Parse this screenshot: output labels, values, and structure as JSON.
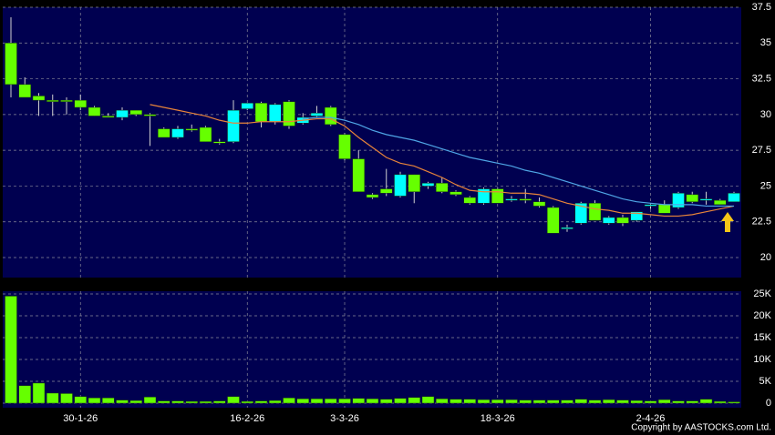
{
  "chart_data": [
    {
      "type": "candlestick",
      "open": [
        35.0,
        32.1,
        31.3,
        31.0,
        31.0,
        31.0,
        30.5,
        29.9,
        29.8,
        30.3,
        30.0,
        29.0,
        28.4,
        29.0,
        29.1,
        28.1,
        28.1,
        30.4,
        30.8,
        29.5,
        30.9,
        29.4,
        29.9,
        30.5,
        28.6,
        26.9,
        24.4,
        24.8,
        24.3,
        25.8,
        25.0,
        25.2,
        24.6,
        24.2,
        23.8,
        24.8,
        24.0,
        24.1,
        23.9,
        23.5,
        22.0,
        22.4,
        23.8,
        22.4,
        22.8,
        22.6,
        23.6,
        23.7,
        23.5,
        24.4,
        24.0,
        24.0,
        23.9
      ],
      "high": [
        36.8,
        32.6,
        31.5,
        31.4,
        31.2,
        31.4,
        30.6,
        30.1,
        30.5,
        30.3,
        30.1,
        29.1,
        29.2,
        29.3,
        29.2,
        28.3,
        31.0,
        30.8,
        30.9,
        30.8,
        31.0,
        30.1,
        30.6,
        30.6,
        28.7,
        27.5,
        24.5,
        26.2,
        26.0,
        25.8,
        25.3,
        25.6,
        24.7,
        24.3,
        24.9,
        24.9,
        24.3,
        24.8,
        24.2,
        23.6,
        22.3,
        23.9,
        24.0,
        22.9,
        23.0,
        23.2,
        23.8,
        24.0,
        24.6,
        24.6,
        24.6,
        24.1,
        24.6
      ],
      "low": [
        31.2,
        31.2,
        29.9,
        29.9,
        30.0,
        30.3,
        29.9,
        29.8,
        29.6,
        29.9,
        27.8,
        28.4,
        28.3,
        28.8,
        28.1,
        27.9,
        28.0,
        30.3,
        29.1,
        29.3,
        29.0,
        29.3,
        29.8,
        29.2,
        26.8,
        24.6,
        24.1,
        24.3,
        24.2,
        23.8,
        24.8,
        24.5,
        24.3,
        23.7,
        23.7,
        23.8,
        23.9,
        23.8,
        23.5,
        21.7,
        21.8,
        22.3,
        22.6,
        22.3,
        22.2,
        22.5,
        23.4,
        23.1,
        23.4,
        23.8,
        23.7,
        23.7,
        23.9
      ],
      "close": [
        32.1,
        31.2,
        31.0,
        31.0,
        31.0,
        30.5,
        29.9,
        29.8,
        30.3,
        30.0,
        29.9,
        28.4,
        29.0,
        29.0,
        28.1,
        28.0,
        30.3,
        30.8,
        29.5,
        30.7,
        29.2,
        29.8,
        30.1,
        29.3,
        26.9,
        24.6,
        24.2,
        24.5,
        25.8,
        24.6,
        25.2,
        24.6,
        24.4,
        23.8,
        24.8,
        23.8,
        24.1,
        24.0,
        23.6,
        21.7,
        22.1,
        23.8,
        22.6,
        22.8,
        22.4,
        23.2,
        23.7,
        23.1,
        24.5,
        23.9,
        24.1,
        23.7,
        24.5
      ],
      "up_color": "#00ffff",
      "down_color": "#66ff00",
      "lines": [
        {
          "color": "#e8843a",
          "values": [
            null,
            null,
            null,
            null,
            null,
            null,
            null,
            null,
            null,
            null,
            30.7,
            30.5,
            30.3,
            30.1,
            29.9,
            29.6,
            29.4,
            29.4,
            29.5,
            29.5,
            29.5,
            29.6,
            29.7,
            29.7,
            29.2,
            28.4,
            27.7,
            27.0,
            26.6,
            26.4,
            26.0,
            25.6,
            25.1,
            24.7,
            24.6,
            24.6,
            24.5,
            24.5,
            24.4,
            24.1,
            23.8,
            23.6,
            23.4,
            23.3,
            23.1,
            23.1,
            23.0,
            22.9,
            22.9,
            23.0,
            23.2,
            23.4,
            23.6
          ]
        },
        {
          "color": "#4fa6e6",
          "values": [
            null,
            null,
            null,
            null,
            null,
            null,
            null,
            null,
            null,
            null,
            null,
            null,
            null,
            null,
            null,
            null,
            null,
            null,
            null,
            null,
            null,
            29.7,
            29.8,
            29.8,
            29.6,
            29.3,
            28.9,
            28.6,
            28.4,
            28.2,
            27.9,
            27.6,
            27.3,
            27.0,
            26.8,
            26.6,
            26.4,
            26.1,
            25.9,
            25.6,
            25.3,
            25.0,
            24.7,
            24.4,
            24.1,
            23.9,
            23.8,
            23.7,
            23.7,
            23.7,
            23.6,
            23.6,
            23.6
          ]
        }
      ],
      "ylim": [
        18.6,
        37.5
      ],
      "yticks": [
        20,
        22.5,
        25,
        27.5,
        30,
        32.5,
        35,
        37.5
      ],
      "grid": true
    },
    {
      "type": "bar",
      "categories": [
        null,
        null,
        null,
        null,
        null,
        "30-1-26",
        null,
        null,
        null,
        null,
        null,
        null,
        null,
        null,
        null,
        null,
        null,
        "16-2-26",
        null,
        null,
        null,
        null,
        null,
        null,
        "3-3-26",
        null,
        null,
        null,
        null,
        null,
        null,
        null,
        null,
        null,
        null,
        "18-3-26",
        null,
        null,
        null,
        null,
        null,
        null,
        null,
        null,
        null,
        null,
        "2-4-26",
        null,
        null,
        null,
        null,
        null,
        null
      ],
      "values": [
        24500,
        4000,
        4600,
        2300,
        2200,
        1500,
        1200,
        1200,
        700,
        600,
        1400,
        500,
        500,
        400,
        400,
        500,
        1500,
        400,
        500,
        600,
        1200,
        1000,
        1000,
        1000,
        1000,
        1100,
        1000,
        900,
        1100,
        1300,
        1500,
        1000,
        900,
        900,
        800,
        800,
        800,
        700,
        700,
        700,
        700,
        900,
        700,
        800,
        700,
        600,
        500,
        800,
        500,
        500,
        900,
        400,
        300
      ],
      "color": "#66ff00",
      "ylim": [
        0,
        25000
      ],
      "yticks": [
        0,
        {
          "value": 5000,
          "label": "5K"
        },
        {
          "value": 10000,
          "label": "10K"
        },
        {
          "value": 15000,
          "label": "15K"
        },
        {
          "value": 20000,
          "label": "20K"
        },
        {
          "value": 25000,
          "label": "25K"
        }
      ],
      "grid": true
    }
  ],
  "copyright": "Copyright by AASTOCKS.com Ltd."
}
